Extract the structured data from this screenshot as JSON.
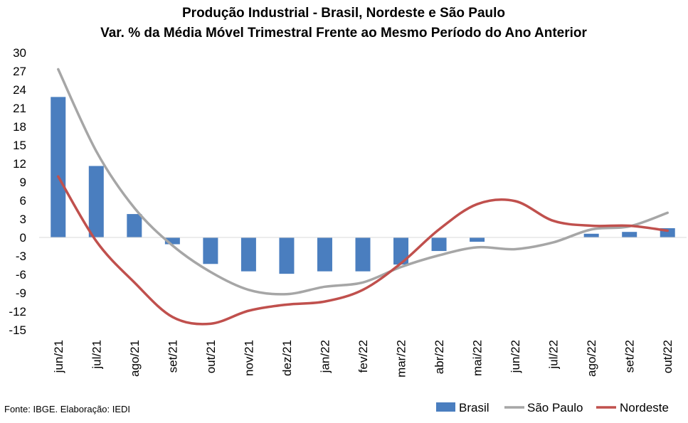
{
  "chart_data": {
    "type": "bar",
    "title": "Produção Industrial - Brasil, Nordeste e São Paulo",
    "subtitle": "Var. % da Média Móvel Trimestral Frente ao Mesmo Período do Ano Anterior",
    "xlabel": "",
    "ylabel": "",
    "ylim": [
      -15,
      30
    ],
    "yticks": [
      30,
      27,
      24,
      21,
      18,
      15,
      12,
      9,
      6,
      3,
      0,
      -3,
      -6,
      -9,
      -12,
      -15
    ],
    "categories": [
      "jun/21",
      "jul/21",
      "ago/21",
      "set/21",
      "out/21",
      "nov/21",
      "dez/21",
      "jan/22",
      "fev/22",
      "mar/22",
      "abr/22",
      "mai/22",
      "jun/22",
      "jul/22",
      "ago/22",
      "set/22",
      "out/22"
    ],
    "series": [
      {
        "name": "Brasil",
        "type": "bar",
        "color": "#4a7ebf",
        "values": [
          22.8,
          11.6,
          3.8,
          -1.1,
          -4.3,
          -5.5,
          -5.9,
          -5.5,
          -5.5,
          -4.4,
          -2.2,
          -0.7,
          0.0,
          0.0,
          0.6,
          0.9,
          1.5
        ]
      },
      {
        "name": "São Paulo",
        "type": "line",
        "color": "#a6a6a6",
        "values": [
          27.3,
          14.0,
          4.8,
          -1.3,
          -5.6,
          -8.5,
          -9.2,
          -8.0,
          -7.3,
          -4.8,
          -2.9,
          -1.6,
          -1.9,
          -0.8,
          1.3,
          1.8,
          4.0
        ]
      },
      {
        "name": "Nordeste",
        "type": "line",
        "color": "#c0504d",
        "values": [
          9.9,
          -0.6,
          -7.3,
          -12.9,
          -14.0,
          -11.9,
          -10.9,
          -10.4,
          -8.5,
          -4.2,
          1.3,
          5.4,
          5.9,
          2.7,
          1.9,
          1.9,
          1.1
        ]
      }
    ],
    "grid": false,
    "legend": "bottom-right",
    "source": "Fonte: IBGE. Elaboração: IEDI"
  }
}
